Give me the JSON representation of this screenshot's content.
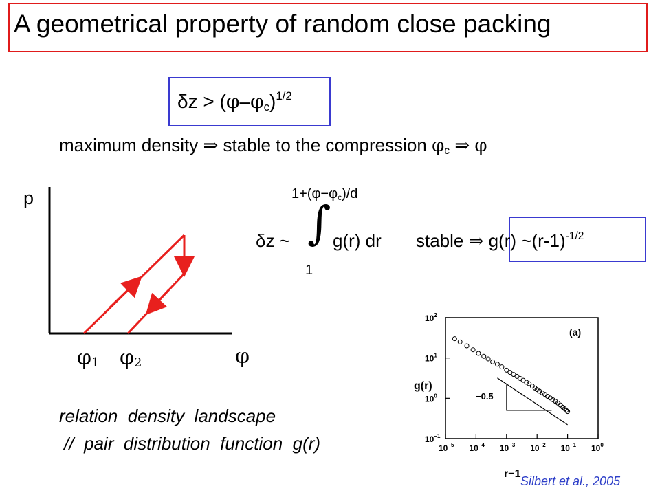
{
  "title": "A geometrical property of  random close packing",
  "boxed_equation": {
    "left": "δz > (",
    "phi": "φ",
    "minus": "–",
    "phic": "φ",
    "c": "c",
    "close": ")",
    "exp": "1/2"
  },
  "density_line": {
    "text1": "maximum density",
    "arrow": "⇒",
    "text2": "stable to the compression",
    "phi": "φ",
    "c": "c",
    "arrow2": "⇒",
    "phi2": "φ"
  },
  "hysteresis": {
    "y_label": "p",
    "x_label": "φ",
    "tick1": "φ",
    "tick1_sub": "1",
    "tick2": "φ",
    "tick2_sub": "2",
    "line_color": "#e8201e"
  },
  "integral_eq": {
    "lhs": "δz ~",
    "upper_limit": "1+(φ−φ",
    "upper_sub": "c",
    "upper_tail": ")/d",
    "lower_limit": "1",
    "integral_sign": "∫",
    "integrand": "g(r) dr",
    "stable": "stable",
    "arrow": "⇒",
    "result": "g(r) ~(r-1)",
    "result_exp": "-1/2"
  },
  "relation": {
    "line1": "relation  density  landscape",
    "line2": " //  pair  distribution  function  g(r)"
  },
  "credit": "Silbert et al., 2005",
  "chart_data": {
    "type": "scatter",
    "title": "",
    "panel_label": "(a)",
    "xlabel": "r−1",
    "ylabel": "g(r)",
    "x_scale": "log",
    "y_scale": "log",
    "xlim": [
      1e-05,
      1
    ],
    "ylim": [
      0.1,
      100
    ],
    "x_ticks": [
      "10",
      "10",
      "10",
      "10",
      "10",
      "10"
    ],
    "x_tick_exps": [
      "−5",
      "−4",
      "−3",
      "−2",
      "−1",
      "0"
    ],
    "y_ticks": [
      "10",
      "10",
      "10",
      "10"
    ],
    "y_tick_exps": [
      "−1",
      "0",
      "1",
      "2"
    ],
    "slope_annotation": "−0.5",
    "slope": -0.5,
    "points_x": [
      2e-05,
      3e-05,
      5e-05,
      8e-05,
      0.00012,
      0.00018,
      0.00025,
      0.00035,
      0.0005,
      0.0007,
      0.001,
      0.0013,
      0.0017,
      0.0022,
      0.0028,
      0.0035,
      0.0045,
      0.0055,
      0.007,
      0.0085,
      0.01,
      0.012,
      0.015,
      0.018,
      0.022,
      0.027,
      0.033,
      0.04,
      0.048,
      0.058,
      0.07,
      0.08,
      0.09,
      0.1
    ],
    "points_y": [
      30,
      25,
      20,
      16,
      13,
      11,
      9.5,
      8,
      7,
      6,
      5,
      4.4,
      3.9,
      3.5,
      3.1,
      2.8,
      2.5,
      2.3,
      2.0,
      1.8,
      1.65,
      1.5,
      1.35,
      1.25,
      1.12,
      1.02,
      0.92,
      0.84,
      0.76,
      0.68,
      0.6,
      0.55,
      0.5,
      0.47
    ]
  }
}
